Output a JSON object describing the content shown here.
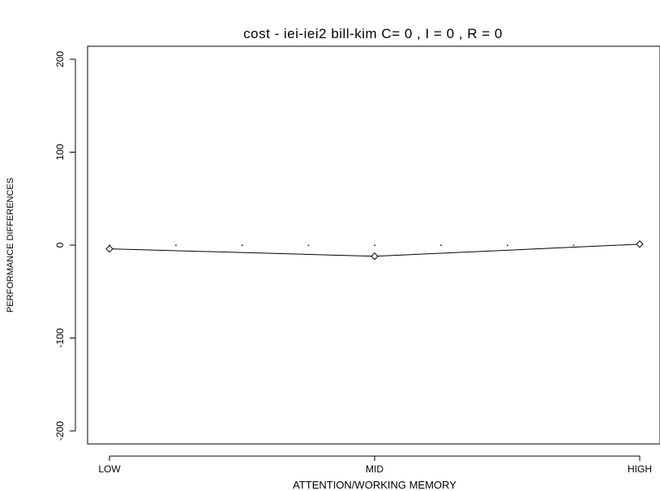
{
  "chart_data": {
    "type": "line",
    "title": "cost - iei-iei2 bill-kim C= 0 , I = 0 , R = 0",
    "xlabel": "ATTENTION/WORKING MEMORY",
    "ylabel": "PERFORMANCE DIFFERENCES",
    "categories": [
      "LOW",
      "MID",
      "HIGH"
    ],
    "x_positions": [
      0,
      0.5,
      1
    ],
    "ylim": [
      -220,
      220
    ],
    "yticks": [
      -200,
      -100,
      0,
      100,
      200
    ],
    "ytick_labels": [
      "-200",
      "-100",
      "0",
      "100",
      "200"
    ],
    "series": [
      {
        "marker": "diamond",
        "values": [
          -4,
          -12,
          1
        ]
      }
    ],
    "reference_line": {
      "y": 0,
      "style": "dotted",
      "x": [
        0,
        0.125,
        0.25,
        0.375,
        0.5,
        0.625,
        0.75,
        0.875,
        1
      ]
    },
    "grid": false,
    "legend": "none"
  }
}
